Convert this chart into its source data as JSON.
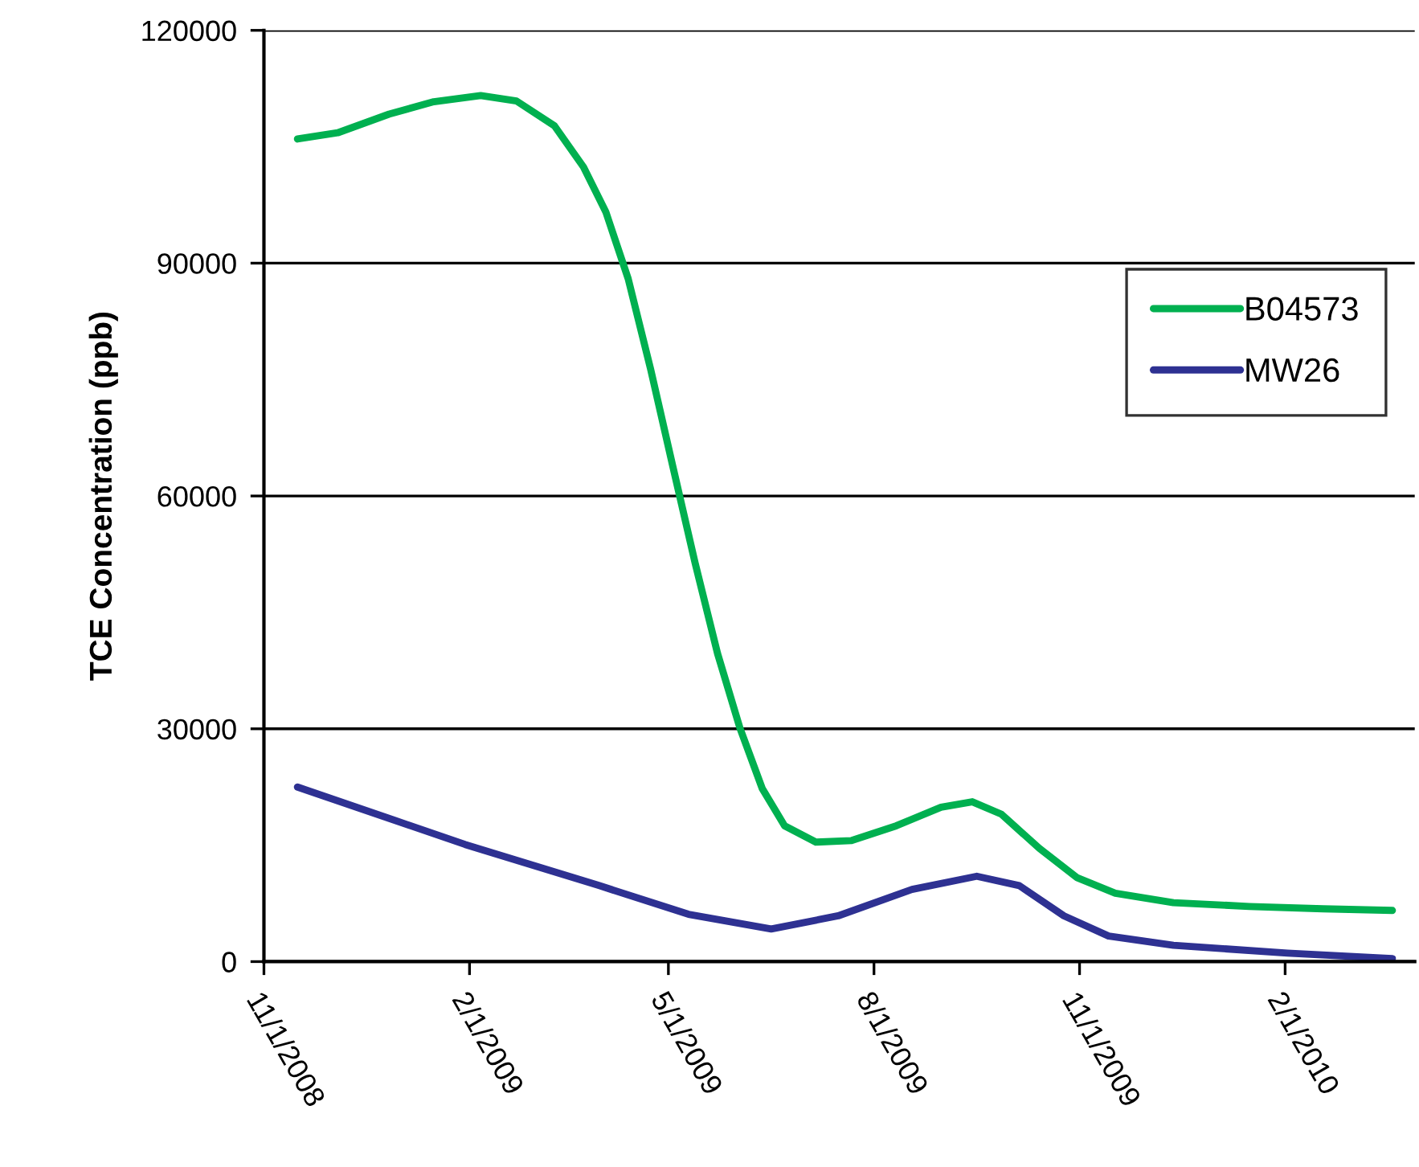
{
  "chart_data": {
    "type": "line",
    "ylabel": "TCE Concentration (ppb)",
    "series": [
      {
        "name": "B04573",
        "color": "#00b050",
        "x": [
          "2008-11-16",
          "2008-12-04",
          "2008-12-27",
          "2009-01-16",
          "2009-02-06",
          "2009-02-22",
          "2009-03-11",
          "2009-03-24",
          "2009-04-03",
          "2009-04-13",
          "2009-04-23",
          "2009-05-03",
          "2009-05-13",
          "2009-05-23",
          "2009-06-02",
          "2009-06-12",
          "2009-06-22",
          "2009-07-06",
          "2009-07-22",
          "2009-08-11",
          "2009-08-31",
          "2009-09-14",
          "2009-09-27",
          "2009-10-14",
          "2009-10-31",
          "2009-11-17",
          "2009-12-13",
          "2010-01-16",
          "2010-02-18",
          "2010-03-21"
        ],
        "values": [
          106000,
          106800,
          109200,
          110800,
          111600,
          110900,
          107700,
          102400,
          96600,
          88000,
          76400,
          63800,
          51300,
          39700,
          30100,
          22300,
          17500,
          15400,
          15600,
          17500,
          19900,
          20600,
          19000,
          14600,
          10800,
          8800,
          7600,
          7100,
          6800,
          6600
        ]
      },
      {
        "name": "MW26",
        "color": "#2e3192",
        "x": [
          "2008-11-16",
          "2009-01-30",
          "2009-03-31",
          "2009-05-10",
          "2009-06-16",
          "2009-07-16",
          "2009-08-18",
          "2009-09-16",
          "2009-10-05",
          "2009-10-25",
          "2009-11-14",
          "2009-12-13",
          "2010-02-02",
          "2010-03-21"
        ],
        "values": [
          22500,
          15100,
          9800,
          6100,
          4200,
          5900,
          9300,
          11000,
          9800,
          5900,
          3300,
          2100,
          1100,
          400
        ]
      }
    ],
    "xlim": [
      "2008-11-01",
      "2010-03-31"
    ],
    "xticks": [
      {
        "value": "2008-11-01",
        "label": "11/1/2008"
      },
      {
        "value": "2009-02-01",
        "label": "2/1/2009"
      },
      {
        "value": "2009-05-01",
        "label": "5/1/2009"
      },
      {
        "value": "2009-08-01",
        "label": "8/1/2009"
      },
      {
        "value": "2009-11-01",
        "label": "11/1/2009"
      },
      {
        "value": "2010-02-01",
        "label": "2/1/2010"
      }
    ],
    "ylim": [
      0,
      120000
    ],
    "yticks": [
      0,
      30000,
      60000,
      90000,
      120000
    ],
    "grid": "y",
    "legend": "right",
    "marker": "none",
    "line_style": "solid"
  }
}
